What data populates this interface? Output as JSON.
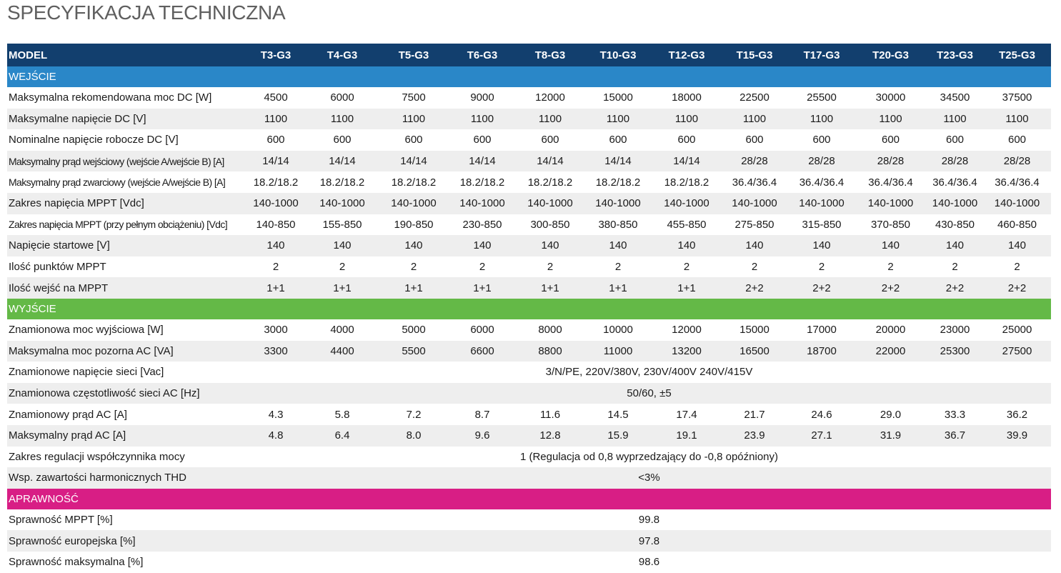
{
  "title": "SPECYFIKACJA TECHNICZNA",
  "colors": {
    "header": "#123f6e",
    "section_input": "#2a87c8",
    "section_output": "#64b947",
    "section_efficiency": "#d81e85",
    "row_shade": "#eeeeee"
  },
  "header": {
    "model_label": "MODEL",
    "models": [
      "T3-G3",
      "T4-G3",
      "T5-G3",
      "T6-G3",
      "T8-G3",
      "T10-G3",
      "T12-G3",
      "T15-G3",
      "T17-G3",
      "T20-G3",
      "T23-G3",
      "T25-G3"
    ]
  },
  "sections": [
    {
      "id": "input",
      "title": "WEJŚCIE",
      "rows": [
        {
          "label": "Maksymalna rekomendowana moc DC [W]",
          "values": [
            "4500",
            "6000",
            "7500",
            "9000",
            "12000",
            "15000",
            "18000",
            "22500",
            "25500",
            "30000",
            "34500",
            "37500"
          ]
        },
        {
          "label": "Maksymalne napięcie DC [V]",
          "values": [
            "1100",
            "1100",
            "1100",
            "1100",
            "1100",
            "1100",
            "1100",
            "1100",
            "1100",
            "1100",
            "1100",
            "1100"
          ]
        },
        {
          "label": "Nominalne napięcie robocze DC [V]",
          "values": [
            "600",
            "600",
            "600",
            "600",
            "600",
            "600",
            "600",
            "600",
            "600",
            "600",
            "600",
            "600"
          ]
        },
        {
          "label": "Maksymalny prąd wejściowy (wejście A/wejście B) [A]",
          "values": [
            "14/14",
            "14/14",
            "14/14",
            "14/14",
            "14/14",
            "14/14",
            "14/14",
            "28/28",
            "28/28",
            "28/28",
            "28/28",
            "28/28"
          ]
        },
        {
          "label": "Maksymalny prąd zwarciowy (wejście A/wejście B) [A]",
          "values": [
            "18.2/18.2",
            "18.2/18.2",
            "18.2/18.2",
            "18.2/18.2",
            "18.2/18.2",
            "18.2/18.2",
            "18.2/18.2",
            "36.4/36.4",
            "36.4/36.4",
            "36.4/36.4",
            "36.4/36.4",
            "36.4/36.4"
          ]
        },
        {
          "label": "Zakres napięcia MPPT [Vdc]",
          "values": [
            "140-1000",
            "140-1000",
            "140-1000",
            "140-1000",
            "140-1000",
            "140-1000",
            "140-1000",
            "140-1000",
            "140-1000",
            "140-1000",
            "140-1000",
            "140-1000"
          ]
        },
        {
          "label": "Zakres napięcia MPPT (przy pełnym obciążeniu) [Vdc]",
          "values": [
            "140-850",
            "155-850",
            "190-850",
            "230-850",
            "300-850",
            "380-850",
            "455-850",
            "275-850",
            "315-850",
            "370-850",
            "430-850",
            "460-850"
          ]
        },
        {
          "label": "Napięcie startowe [V]",
          "values": [
            "140",
            "140",
            "140",
            "140",
            "140",
            "140",
            "140",
            "140",
            "140",
            "140",
            "140",
            "140"
          ]
        },
        {
          "label": "Ilość punktów MPPT",
          "values": [
            "2",
            "2",
            "2",
            "2",
            "2",
            "2",
            "2",
            "2",
            "2",
            "2",
            "2",
            "2"
          ]
        },
        {
          "label": "Ilość wejść na MPPT",
          "values": [
            "1+1",
            "1+1",
            "1+1",
            "1+1",
            "1+1",
            "1+1",
            "1+1",
            "2+2",
            "2+2",
            "2+2",
            "2+2",
            "2+2"
          ]
        }
      ]
    },
    {
      "id": "output",
      "title": "WYJŚCIE",
      "rows": [
        {
          "label": "Znamionowa moc wyjściowa [W]",
          "values": [
            "3000",
            "4000",
            "5000",
            "6000",
            "8000",
            "10000",
            "12000",
            "15000",
            "17000",
            "20000",
            "23000",
            "25000"
          ]
        },
        {
          "label": "Maksymalna moc pozorna AC [VA]",
          "values": [
            "3300",
            "4400",
            "5500",
            "6600",
            "8800",
            "11000",
            "13200",
            "16500",
            "18700",
            "22000",
            "25300",
            "27500"
          ]
        },
        {
          "label": "Znamionowe napięcie sieci [Vac]",
          "span_value": "3/N/PE, 220V/380V, 230V/400V 240V/415V"
        },
        {
          "label": "Znamionowa częstotliwość sieci AC [Hz]",
          "span_value": "50/60, ±5"
        },
        {
          "label": "Znamionowy prąd AC [A]",
          "values": [
            "4.3",
            "5.8",
            "7.2",
            "8.7",
            "11.6",
            "14.5",
            "17.4",
            "21.7",
            "24.6",
            "29.0",
            "33.3",
            "36.2"
          ]
        },
        {
          "label": "Maksymalny prąd AC [A]",
          "values": [
            "4.8",
            "6.4",
            "8.0",
            "9.6",
            "12.8",
            "15.9",
            "19.1",
            "23.9",
            "27.1",
            "31.9",
            "36.7",
            "39.9"
          ]
        },
        {
          "label": "Zakres regulacji współczynnika mocy",
          "span_value": "1 (Regulacja od 0,8 wyprzedzający do -0,8 opóźniony)"
        },
        {
          "label": "Wsp. zawartości harmonicznych THD",
          "span_value": "<3%"
        }
      ]
    },
    {
      "id": "efficiency",
      "title": "APRAWNOŚĆ",
      "rows": [
        {
          "label": "Sprawność MPPT [%]",
          "span_value": "99.8"
        },
        {
          "label": "Sprawność europejska [%]",
          "span_value": "97.8"
        },
        {
          "label": "Sprawność maksymalna [%]",
          "span_value": "98.6"
        }
      ]
    }
  ]
}
